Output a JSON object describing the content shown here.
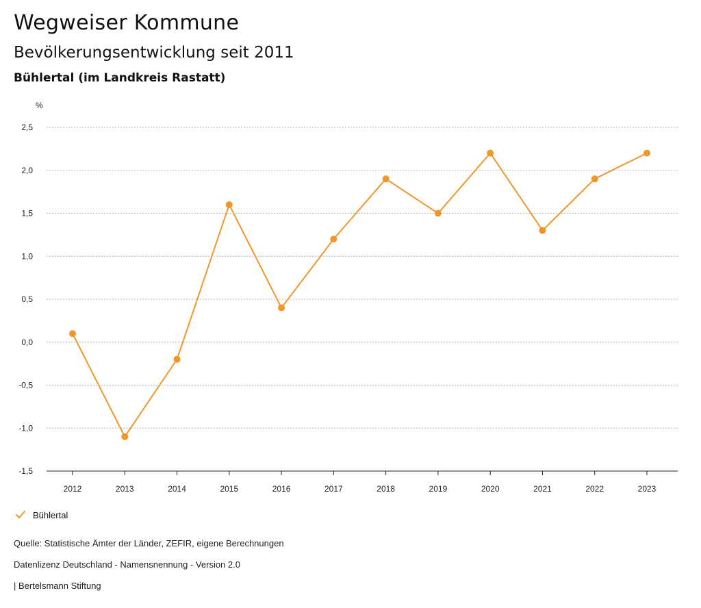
{
  "header": {
    "title": "Wegweiser Kommune",
    "subtitle": "Bevölkerungsentwicklung seit 2011",
    "region": "Bühlertal (im Landkreis Rastatt)"
  },
  "colors": {
    "series": "#F0962A",
    "grid": "#b5b5b5",
    "axis": "#222222"
  },
  "chart_data": {
    "type": "line",
    "title": "Bevölkerungsentwicklung seit 2011",
    "ylabel": "%",
    "xlabel": "",
    "ylim": [
      -1.5,
      2.5
    ],
    "yticks": [
      2.5,
      2.0,
      1.5,
      1.0,
      0.5,
      0.0,
      -0.5,
      -1.0,
      -1.5
    ],
    "ytick_labels": [
      "2,5",
      "2,0",
      "1,5",
      "1,0",
      "0,5",
      "0,0",
      "-0,5",
      "-1,0",
      "-1,5"
    ],
    "grid": true,
    "legend_position": "bottom-left",
    "categories": [
      "2012",
      "2013",
      "2014",
      "2015",
      "2016",
      "2017",
      "2018",
      "2019",
      "2020",
      "2021",
      "2022",
      "2023"
    ],
    "series": [
      {
        "name": "Bühlertal",
        "values": [
          0.1,
          -1.1,
          -0.2,
          1.6,
          0.4,
          1.2,
          1.9,
          1.5,
          2.2,
          1.3,
          1.9,
          2.2
        ]
      }
    ]
  },
  "legend": {
    "label": "Bühlertal",
    "icon": "checkmark-icon"
  },
  "footer": {
    "source": "Quelle: Statistische Ämter der Länder, ZEFIR, eigene Berechnungen",
    "license": "Datenlizenz Deutschland - Namensnennung - Version 2.0",
    "brand": "| Bertelsmann Stiftung"
  }
}
